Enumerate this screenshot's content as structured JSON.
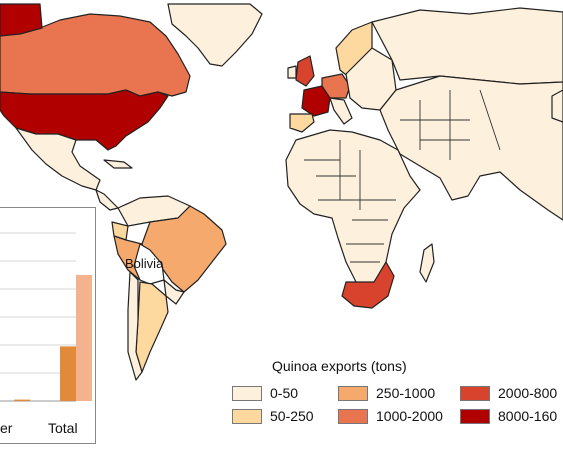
{
  "map": {
    "label": "Bolivia"
  },
  "legend": {
    "title": "Quinoa exports (tons)",
    "items": [
      {
        "range": "0-50",
        "color": "#fdf0dc"
      },
      {
        "range": "50-250",
        "color": "#fdd9a0"
      },
      {
        "range": "250-1000",
        "color": "#f5a96c"
      },
      {
        "range": "1000-2000",
        "color": "#e8754f"
      },
      {
        "range": "2000-800",
        "color": "#d8432e"
      },
      {
        "range": "8000-160",
        "color": "#b00000"
      }
    ]
  },
  "inset_chart": {
    "type": "bar",
    "categories": [
      "er",
      "Total"
    ],
    "series": [
      {
        "values": [
          0.5,
          19.5
        ],
        "color": "#e08a3a"
      },
      {
        "values": [
          0,
          45
        ],
        "color": "#f4b28e"
      }
    ],
    "ylim": [
      0,
      60
    ],
    "grid": true
  }
}
